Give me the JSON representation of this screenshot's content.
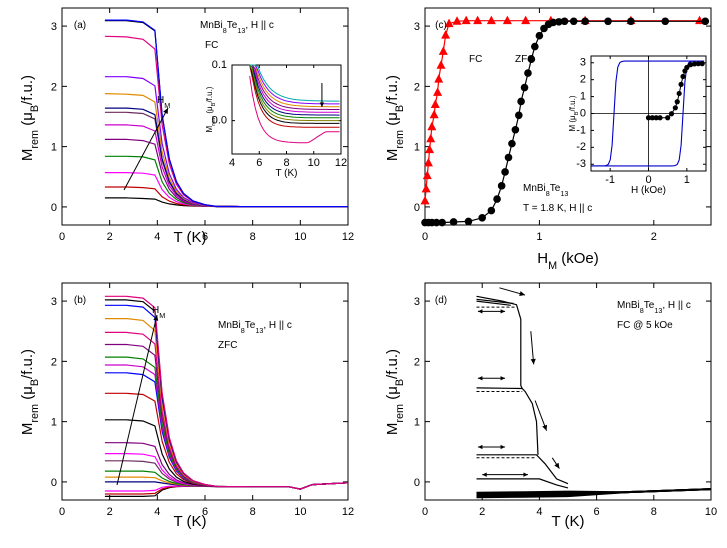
{
  "chart_data": [
    {
      "panel": "(a)",
      "type": "line",
      "annotations": [
        "MnBi8Te13, H || c",
        "FC",
        "H_M"
      ],
      "xlabel": "T (K)",
      "ylabel": "M_rem (μB/f.u.)",
      "xlim": [
        0,
        12
      ],
      "ylim": [
        -0.3,
        3.3
      ],
      "xticks": [
        "0",
        "2",
        "4",
        "6",
        "8",
        "10",
        "12"
      ],
      "yticks": [
        "0",
        "1",
        "2",
        "3"
      ],
      "curve_shape": "plateau_to_0.005",
      "series": [
        {
          "color": "#000000",
          "values": [
            0.15,
            0.15,
            0.14,
            0.13
          ]
        },
        {
          "color": "#c00000",
          "values": [
            0.33,
            0.33,
            0.32,
            0.3
          ]
        },
        {
          "color": "#ff00ff",
          "values": [
            0.57,
            0.57,
            0.56,
            0.53
          ]
        },
        {
          "color": "#008000",
          "values": [
            0.84,
            0.84,
            0.83,
            0.78
          ]
        },
        {
          "color": "#800080",
          "values": [
            1.12,
            1.12,
            1.1,
            1.04
          ]
        },
        {
          "color": "#cc00cc",
          "values": [
            1.36,
            1.36,
            1.34,
            1.26
          ]
        },
        {
          "color": "#6b2c5f",
          "values": [
            1.57,
            1.57,
            1.55,
            1.46
          ]
        },
        {
          "color": "#000080",
          "values": [
            1.64,
            1.64,
            1.62,
            1.53
          ]
        },
        {
          "color": "#e08a00",
          "values": [
            1.88,
            1.87,
            1.85,
            1.74
          ]
        },
        {
          "color": "#8000ff",
          "values": [
            2.16,
            2.16,
            2.13,
            2.01
          ]
        },
        {
          "color": "#e0007f",
          "values": [
            2.83,
            2.82,
            2.78,
            2.62
          ]
        },
        {
          "color": "#000000",
          "values": [
            3.09,
            3.09,
            3.06,
            2.92
          ]
        },
        {
          "color": "#0000ff",
          "values": [
            3.1,
            3.1,
            3.07,
            2.93
          ]
        }
      ],
      "x": [
        1.8,
        2.7,
        3.4,
        3.9
      ],
      "inset": {
        "xlabel": "T (K)",
        "ylabel": "M_rem (μB/f.u.)",
        "xlim": [
          4,
          12
        ],
        "ylim": [
          -0.06,
          0.1
        ],
        "xticks": [
          "4",
          "6",
          "8",
          "10",
          "12"
        ],
        "yticks": [
          "0.0",
          "0.1"
        ],
        "annotation": "arrow down at ~10.5 K"
      }
    },
    {
      "panel": "(b)",
      "type": "line",
      "annotations": [
        "MnBi8Te13, H || c",
        "ZFC",
        "H_M"
      ],
      "xlabel": "T (K)",
      "ylabel": "M_rem (μB/f.u.)",
      "xlim": [
        0,
        12
      ],
      "ylim": [
        -0.3,
        3.3
      ],
      "xticks": [
        "0",
        "2",
        "4",
        "6",
        "8",
        "10",
        "12"
      ],
      "yticks": [
        "0",
        "1",
        "2",
        "3"
      ],
      "x": [
        1.8,
        2.7,
        3.4,
        3.9
      ],
      "series": [
        {
          "color": "#000000",
          "values": [
            -0.24,
            -0.24,
            -0.24,
            -0.23
          ]
        },
        {
          "color": "#c00000",
          "values": [
            -0.2,
            -0.2,
            -0.2,
            -0.19
          ]
        },
        {
          "color": "#ff00ff",
          "values": [
            -0.15,
            -0.15,
            -0.15,
            -0.14
          ]
        },
        {
          "color": "#000080",
          "values": [
            0.0,
            0.0,
            0.0,
            0.0
          ]
        },
        {
          "color": "#e08a00",
          "values": [
            0.08,
            0.08,
            0.08,
            0.07
          ]
        },
        {
          "color": "#008000",
          "values": [
            0.18,
            0.18,
            0.18,
            0.16
          ]
        },
        {
          "color": "#6b2c5f",
          "values": [
            0.35,
            0.35,
            0.34,
            0.31
          ]
        },
        {
          "color": "#ff00ff",
          "values": [
            0.47,
            0.47,
            0.46,
            0.42
          ]
        },
        {
          "color": "#800080",
          "values": [
            0.65,
            0.65,
            0.64,
            0.59
          ]
        },
        {
          "color": "#000000",
          "values": [
            1.03,
            1.03,
            1.01,
            0.93
          ]
        },
        {
          "color": "#c00000",
          "values": [
            1.47,
            1.47,
            1.45,
            1.34
          ]
        },
        {
          "color": "#0000ff",
          "values": [
            1.81,
            1.81,
            1.78,
            1.66
          ]
        },
        {
          "color": "#cc00cc",
          "values": [
            1.94,
            1.94,
            1.91,
            1.78
          ]
        },
        {
          "color": "#008000",
          "values": [
            2.07,
            2.07,
            2.04,
            1.9
          ]
        },
        {
          "color": "#800080",
          "values": [
            2.28,
            2.28,
            2.25,
            2.1
          ]
        },
        {
          "color": "#e0007f",
          "values": [
            2.48,
            2.48,
            2.45,
            2.29
          ]
        },
        {
          "color": "#e08a00",
          "values": [
            2.71,
            2.71,
            2.68,
            2.51
          ]
        },
        {
          "color": "#0000ff",
          "values": [
            2.93,
            2.93,
            2.9,
            2.73
          ]
        },
        {
          "color": "#000000",
          "values": [
            3.02,
            3.02,
            2.99,
            2.83
          ]
        },
        {
          "color": "#e0007f",
          "values": [
            3.08,
            3.08,
            3.05,
            2.89
          ]
        }
      ],
      "curve_shape": "plateau_to_0.0_with_dip_near_10K"
    },
    {
      "panel": "(c)",
      "type": "scatter",
      "annotations": [
        "MnBi8Te13",
        "T = 1.8 K, H || c"
      ],
      "xlabel": "H_M (kOe)",
      "ylabel": "M_rem (μB/f.u.)",
      "xlim": [
        0,
        2.5
      ],
      "ylim": [
        -0.3,
        3.3
      ],
      "xticks": [
        "0",
        "1",
        "2"
      ],
      "yticks": [
        "0",
        "1",
        "2",
        "3"
      ],
      "series": [
        {
          "name": "FC",
          "color": "#ff0000",
          "marker": "triangle",
          "x": [
            0.0,
            0.01,
            0.02,
            0.03,
            0.04,
            0.05,
            0.06,
            0.08,
            0.09,
            0.11,
            0.12,
            0.14,
            0.16,
            0.18,
            0.21,
            0.28,
            0.36,
            0.46,
            0.58,
            0.72,
            0.88,
            1.1,
            1.4,
            1.8,
            2.4
          ],
          "y": [
            0.1,
            0.3,
            0.52,
            0.73,
            0.95,
            1.13,
            1.33,
            1.53,
            1.7,
            1.9,
            2.12,
            2.35,
            2.58,
            2.85,
            3.04,
            3.08,
            3.09,
            3.09,
            3.09,
            3.09,
            3.09,
            3.09,
            3.09,
            3.09,
            3.09
          ]
        },
        {
          "name": "ZFC",
          "color": "#000000",
          "marker": "circle",
          "x": [
            0.0,
            0.03,
            0.06,
            0.1,
            0.15,
            0.25,
            0.38,
            0.5,
            0.58,
            0.63,
            0.67,
            0.7,
            0.73,
            0.76,
            0.79,
            0.82,
            0.84,
            0.87,
            0.9,
            0.93,
            0.96,
            1.0,
            1.04,
            1.08,
            1.12,
            1.17,
            1.22,
            1.3,
            1.4,
            1.6,
            1.8,
            2.1,
            2.45
          ],
          "y": [
            -0.26,
            -0.26,
            -0.26,
            -0.26,
            -0.26,
            -0.25,
            -0.24,
            -0.18,
            -0.06,
            0.13,
            0.35,
            0.58,
            0.82,
            1.05,
            1.28,
            1.52,
            1.75,
            1.98,
            2.22,
            2.45,
            2.66,
            2.84,
            2.96,
            3.03,
            3.06,
            3.07,
            3.08,
            3.08,
            3.08,
            3.08,
            3.08,
            3.08,
            3.08
          ]
        }
      ],
      "inset": {
        "xlabel": "H (kOe)",
        "ylabel": "M (μB/f.u.)",
        "xlim": [
          -1.5,
          1.5
        ],
        "ylim": [
          -3.4,
          3.4
        ],
        "xticks": [
          "-1",
          "0",
          "1"
        ],
        "yticks": [
          "-3",
          "-2",
          "-1",
          "0",
          "1",
          "2",
          "3"
        ]
      }
    },
    {
      "panel": "(d)",
      "type": "line",
      "annotations": [
        "MnBi8Te13, H || c",
        "FC @ 5 kOe"
      ],
      "xlabel": "T (K)",
      "ylabel": "M_rem (μB/f.u.)",
      "xlim": [
        0,
        10
      ],
      "ylim": [
        -0.3,
        3.3
      ],
      "xticks": [
        "0",
        "2",
        "4",
        "6",
        "8",
        "10"
      ],
      "yticks": [
        "0",
        "1",
        "2",
        "3"
      ]
    }
  ]
}
